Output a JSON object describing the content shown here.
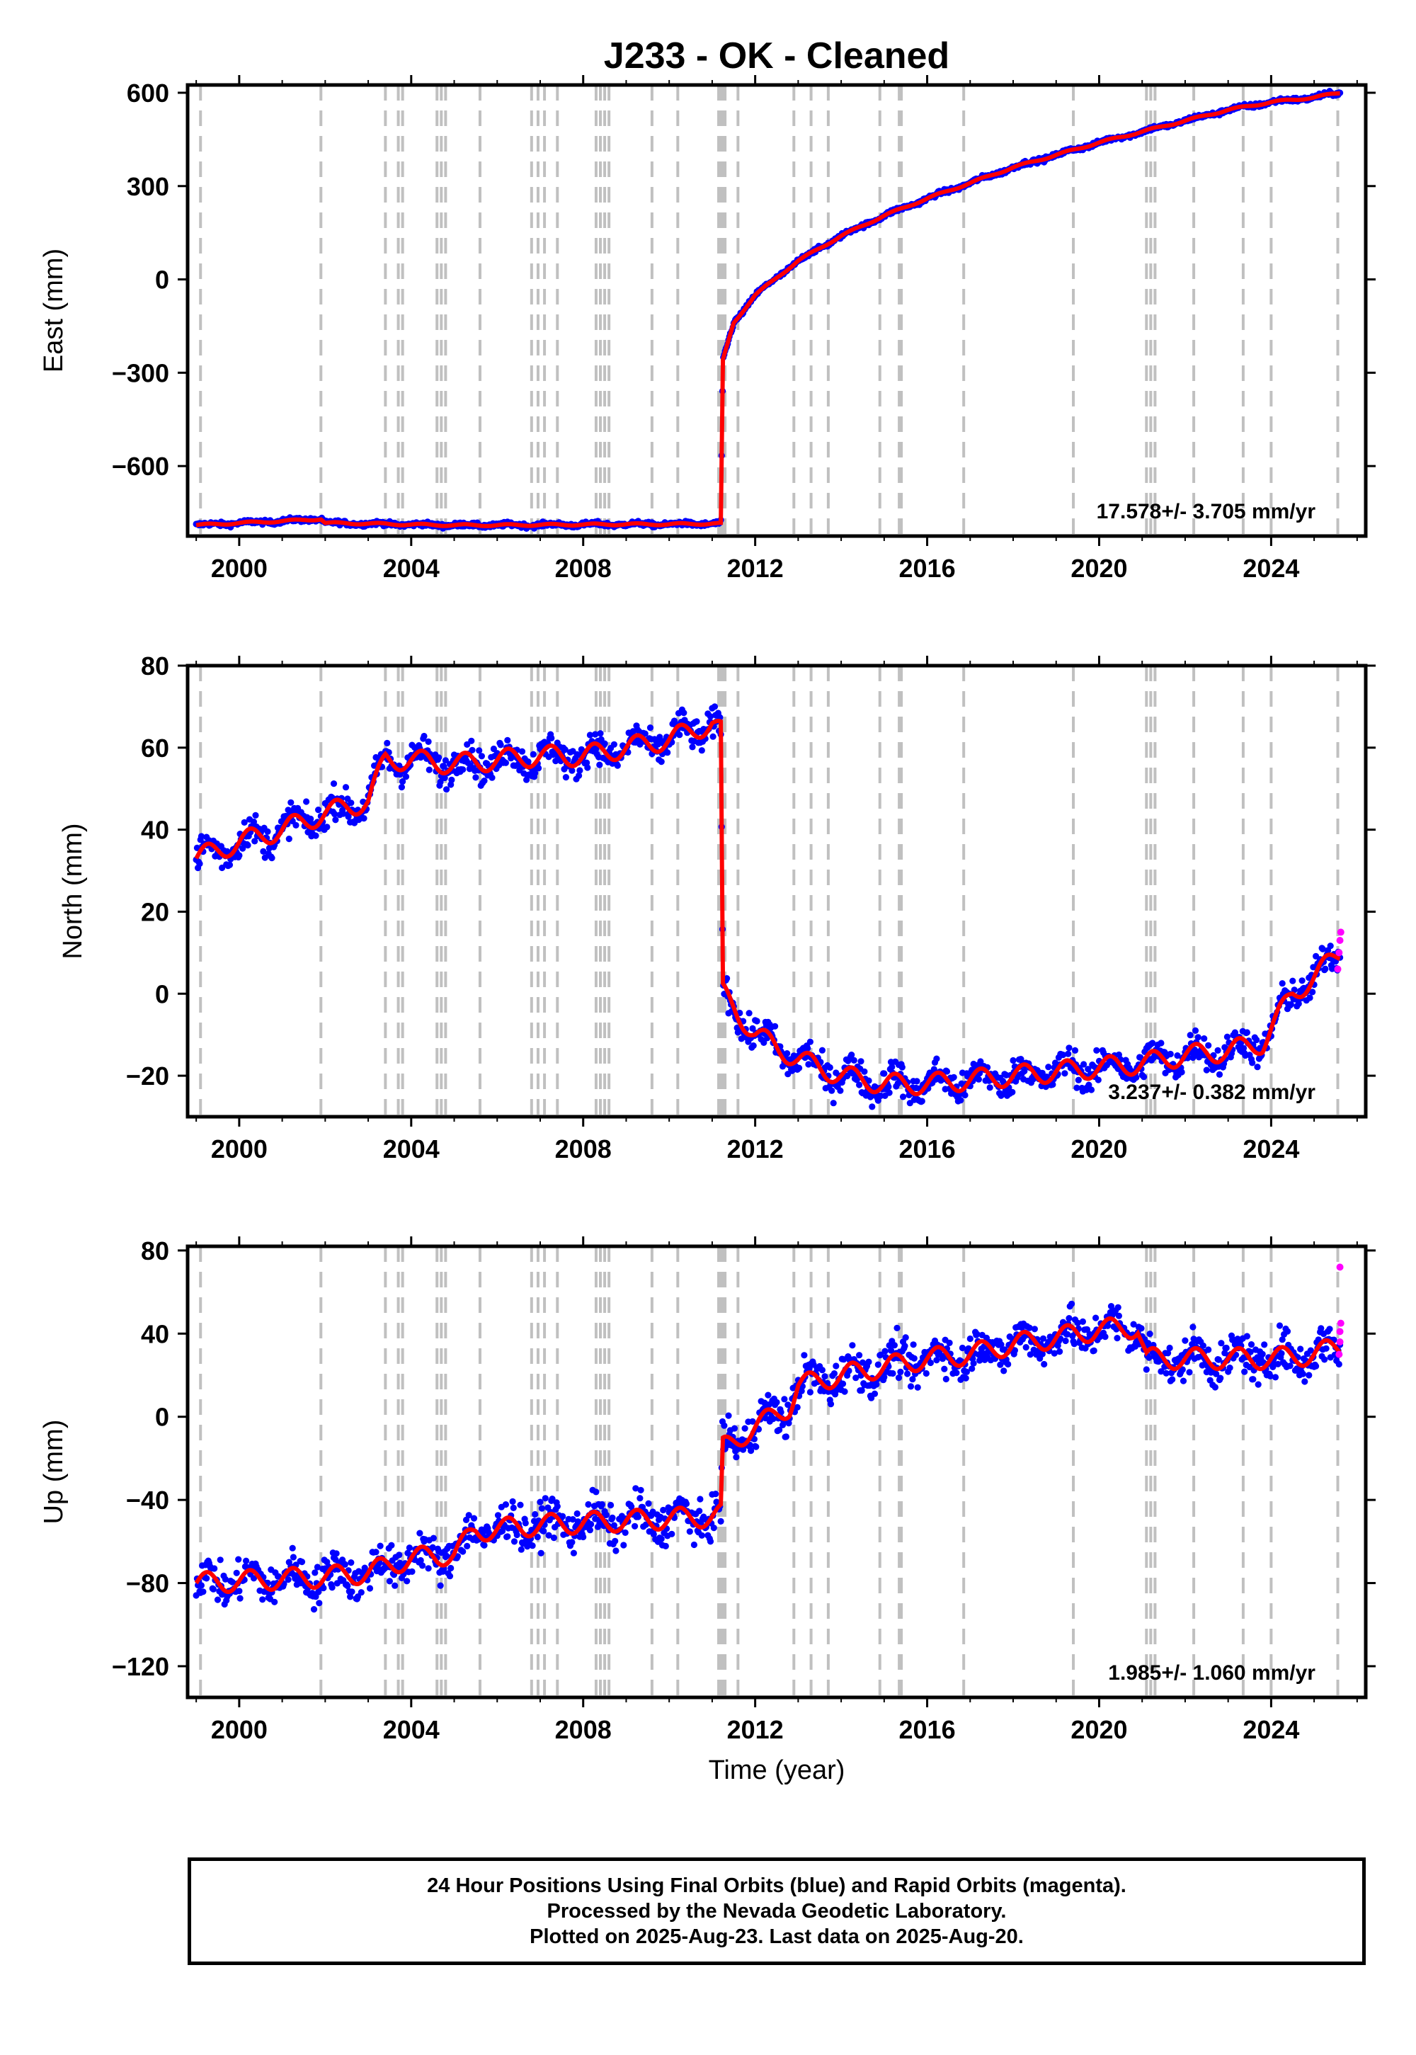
{
  "title": "J233  - OK - Cleaned",
  "xlabel": "Time (year)",
  "colors": {
    "final": "#0000ff",
    "rapid": "#ff00ff",
    "model": "#ff0000",
    "event": "#c0c0c0"
  },
  "chart_data": [
    {
      "type": "scatter",
      "name": "east",
      "ylabel": "East (mm)",
      "rate_label": "17.578+/- 3.705 mm/yr",
      "xlim": [
        1998.8,
        2026.2
      ],
      "ylim": [
        -825,
        625
      ],
      "xticks": [
        2000,
        2004,
        2008,
        2012,
        2016,
        2020,
        2024
      ],
      "xtick_labels": [
        "2000",
        "2004",
        "2008",
        "2012",
        "2016",
        "2020",
        "2024"
      ],
      "yticks": [
        -600,
        -300,
        0,
        300,
        600
      ],
      "ytick_labels": [
        "−600",
        "−300",
        "0",
        "300",
        "600"
      ],
      "x": [
        1999.0,
        2000.0,
        2001.0,
        2001.9,
        2002.0,
        2003.0,
        2004.0,
        2005.0,
        2006.0,
        2007.0,
        2008.0,
        2009.0,
        2010.0,
        2011.0,
        2011.2,
        2011.25,
        2011.5,
        2012.0,
        2013.0,
        2014.0,
        2015.0,
        2016.0,
        2017.0,
        2018.0,
        2019.0,
        2020.0,
        2021.0,
        2022.0,
        2023.0,
        2024.0,
        2025.0,
        2025.6
      ],
      "y": [
        -790,
        -783,
        -777,
        -770,
        -783,
        -785,
        -788,
        -790,
        -790,
        -789,
        -788,
        -787,
        -787,
        -785,
        -785,
        -260,
        -140,
        -50,
        60,
        140,
        205,
        260,
        310,
        360,
        400,
        440,
        475,
        510,
        545,
        570,
        585,
        600
      ],
      "rapid_x": [],
      "rapid_y": []
    },
    {
      "type": "scatter",
      "name": "north",
      "ylabel": "North (mm)",
      "rate_label": "3.237+/- 0.382 mm/yr",
      "xlim": [
        1998.8,
        2026.2
      ],
      "ylim": [
        -30,
        80
      ],
      "xticks": [
        2000,
        2004,
        2008,
        2012,
        2016,
        2020,
        2024
      ],
      "xtick_labels": [
        "2000",
        "2004",
        "2008",
        "2012",
        "2016",
        "2020",
        "2024"
      ],
      "yticks": [
        -20,
        0,
        20,
        40,
        60,
        80
      ],
      "ytick_labels": [
        "−20",
        "0",
        "20",
        "40",
        "60",
        "80"
      ],
      "x": [
        1999.0,
        2000.0,
        2001.0,
        2002.0,
        2003.0,
        2003.4,
        2004.0,
        2005.0,
        2006.0,
        2007.0,
        2008.0,
        2009.0,
        2010.0,
        2011.0,
        2011.2,
        2011.25,
        2012.0,
        2013.0,
        2014.0,
        2015.0,
        2016.0,
        2017.0,
        2018.0,
        2019.0,
        2020.0,
        2021.0,
        2022.0,
        2023.0,
        2023.8,
        2024.5,
        2025.0,
        2025.6
      ],
      "y": [
        33,
        37,
        40,
        44,
        47,
        57,
        57,
        56,
        57,
        58,
        58,
        60,
        62,
        66,
        64,
        0,
        -10,
        -16,
        -20,
        -22,
        -22,
        -21,
        -20,
        -19,
        -18,
        -17,
        -15,
        -14,
        -12,
        0,
        4,
        10
      ],
      "rapid_x": [
        2025.55,
        2025.58,
        2025.6,
        2025.62
      ],
      "rapid_y": [
        6,
        10,
        13,
        15
      ]
    },
    {
      "type": "scatter",
      "name": "up",
      "ylabel": "Up (mm)",
      "rate_label": "1.985+/- 1.060 mm/yr",
      "xlim": [
        1998.8,
        2026.2
      ],
      "ylim": [
        -135,
        82
      ],
      "xticks": [
        2000,
        2004,
        2008,
        2012,
        2016,
        2020,
        2024
      ],
      "xtick_labels": [
        "2000",
        "2004",
        "2008",
        "2012",
        "2016",
        "2020",
        "2024"
      ],
      "yticks": [
        -120,
        -80,
        -40,
        0,
        40,
        80
      ],
      "ytick_labels": [
        "−120",
        "−80",
        "−40",
        "0",
        "40",
        "80"
      ],
      "x": [
        1999.0,
        2000.0,
        2001.0,
        2002.0,
        2003.0,
        2003.7,
        2004.0,
        2005.0,
        2005.5,
        2006.0,
        2007.0,
        2008.0,
        2009.0,
        2010.0,
        2011.0,
        2011.2,
        2011.25,
        2012.0,
        2012.8,
        2013.0,
        2014.0,
        2015.0,
        2016.0,
        2017.0,
        2018.0,
        2019.0,
        2020.0,
        2020.9,
        2021.1,
        2022.0,
        2023.0,
        2024.0,
        2025.0,
        2025.6
      ],
      "y": [
        -80,
        -79,
        -78,
        -77,
        -75,
        -70,
        -68,
        -66,
        -55,
        -54,
        -52,
        -51,
        -50,
        -49,
        -48,
        -47,
        -15,
        -5,
        5,
        15,
        20,
        24,
        28,
        30,
        35,
        38,
        42,
        43,
        28,
        28,
        28,
        28,
        30,
        34
      ],
      "rapid_x": [
        2025.58,
        2025.6,
        2025.6,
        2025.62,
        2025.6
      ],
      "rapid_y": [
        30,
        36,
        41,
        45,
        72
      ]
    }
  ],
  "event_lines": [
    1999.1,
    2001.9,
    2003.4,
    2003.7,
    2003.8,
    2004.6,
    2004.7,
    2004.8,
    2005.6,
    2006.8,
    2006.95,
    2007.1,
    2007.4,
    2008.3,
    2008.4,
    2008.5,
    2008.6,
    2009.6,
    2010.2,
    2011.15,
    2011.2,
    2011.25,
    2011.3,
    2011.6,
    2012.9,
    2013.3,
    2013.7,
    2014.9,
    2015.35,
    2015.4,
    2016.85,
    2019.4,
    2021.1,
    2021.2,
    2021.3,
    2022.2,
    2023.35,
    2024.0,
    2025.55
  ],
  "footer": {
    "line1": "24 Hour Positions Using Final Orbits (blue) and Rapid Orbits (magenta).",
    "line2": "Processed by the Nevada Geodetic Laboratory.",
    "line3": "Plotted on 2025-Aug-23. Last data on 2025-Aug-20."
  }
}
